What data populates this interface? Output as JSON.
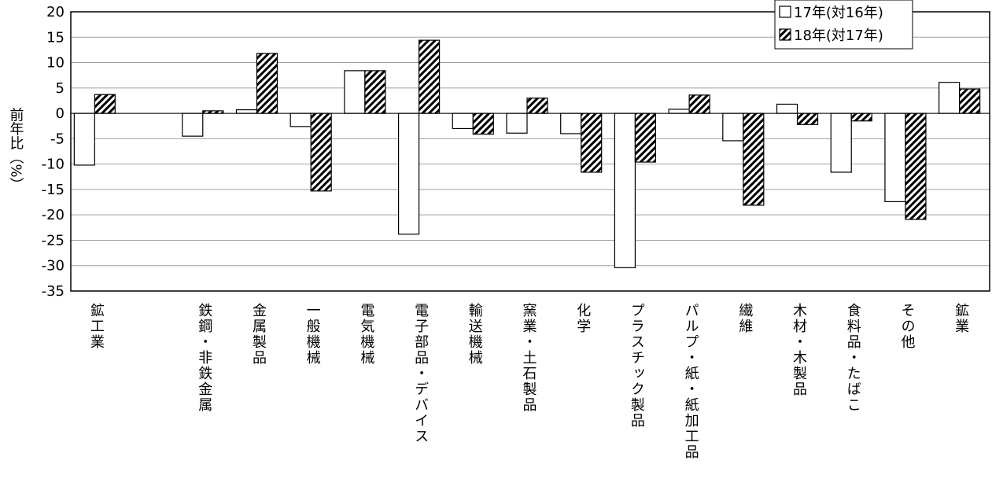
{
  "chart_data": {
    "type": "bar",
    "y_label": "前年比（%）",
    "categories": [
      "鉱工業",
      null,
      "鉄鋼・非鉄金属",
      "金属製品",
      "一般機械",
      "電気機械",
      "電子部品・デバイス",
      "輸送機械",
      "窯業・土石製品",
      "化学",
      "プラスチック製品",
      "パルプ・紙・紙加工品",
      "繊維",
      "木材・木製品",
      "食料品・たばこ",
      "その他",
      "鉱業"
    ],
    "series": [
      {
        "name": "17年(対16年)",
        "color": "#ffffff",
        "pattern": "none",
        "values": [
          -10.2,
          null,
          -4.5,
          0.7,
          -2.6,
          8.4,
          -23.8,
          -3.0,
          -3.9,
          -4.0,
          -30.4,
          0.8,
          -5.4,
          1.8,
          -11.6,
          -17.4,
          6.1
        ]
      },
      {
        "name": "18年(対17年)",
        "color": "#000000",
        "pattern": "hatch",
        "values": [
          3.7,
          null,
          0.5,
          11.8,
          -15.3,
          8.4,
          14.4,
          -4.1,
          3.0,
          -11.6,
          -9.6,
          3.6,
          -18.1,
          -2.2,
          -1.5,
          -20.9,
          4.8
        ]
      }
    ],
    "ylim": [
      -35,
      20
    ],
    "yticks": [
      -35,
      -30,
      -25,
      -20,
      -15,
      -10,
      -5,
      0,
      5,
      10,
      15,
      20
    ],
    "grid": true,
    "legend": "top-right"
  }
}
